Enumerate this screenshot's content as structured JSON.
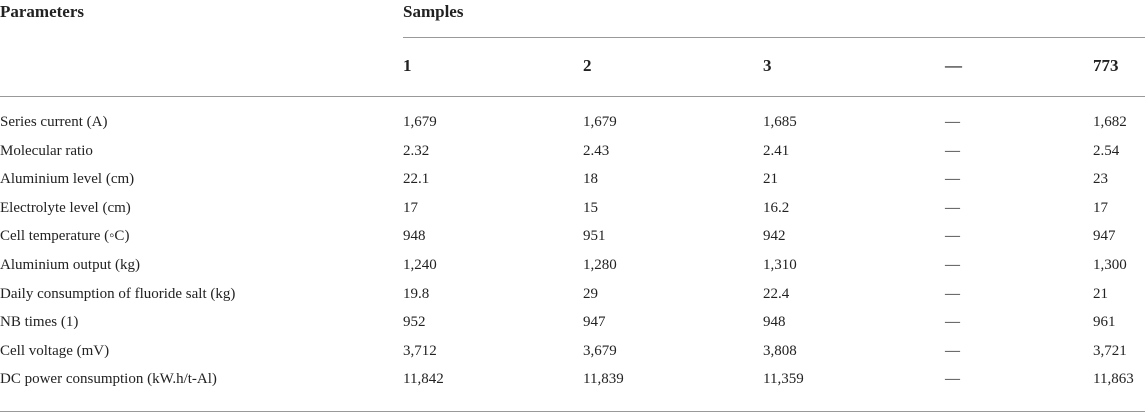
{
  "header": {
    "parameters": "Parameters",
    "samples": "Samples",
    "columns": [
      "1",
      "2",
      "3",
      "—",
      "773"
    ]
  },
  "table": {
    "rows": [
      [
        "Series current (A)",
        "1,679",
        "1,679",
        "1,685",
        "—",
        "1,682"
      ],
      [
        "Molecular ratio",
        "2.32",
        "2.43",
        "2.41",
        "—",
        "2.54"
      ],
      [
        "Aluminium level (cm)",
        "22.1",
        "18",
        "21",
        "—",
        "23"
      ],
      [
        "Electrolyte level (cm)",
        "17",
        "15",
        "16.2",
        "—",
        "17"
      ],
      [
        "Cell temperature (◦C)",
        "948",
        "951",
        "942",
        "—",
        "947"
      ],
      [
        "Aluminium output (kg)",
        "1,240",
        "1,280",
        "1,310",
        "—",
        "1,300"
      ],
      [
        "Daily consumption of fluoride salt (kg)",
        "19.8",
        "29",
        "22.4",
        "—",
        "21"
      ],
      [
        "NB times (1)",
        "952",
        "947",
        "948",
        "—",
        "961"
      ],
      [
        "Cell voltage (mV)",
        "3,712",
        "3,679",
        "3,808",
        "—",
        "3,721"
      ],
      [
        "DC power consumption (kW.h/t-Al)",
        "11,842",
        "11,839",
        "11,359",
        "—",
        "11,863"
      ]
    ]
  }
}
